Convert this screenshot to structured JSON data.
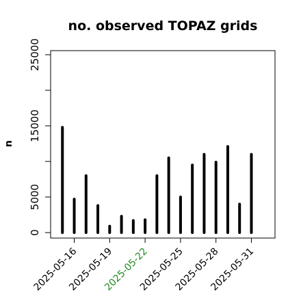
{
  "chart_data": {
    "type": "bar",
    "title": "no. observed TOPAZ grids",
    "xlabel": "",
    "ylabel": "n",
    "ylim": [
      0,
      25000
    ],
    "yticks": [
      0,
      5000,
      15000,
      25000
    ],
    "xlim": [
      "2025-05-14",
      "2025-06-02"
    ],
    "x": [
      "2025-05-15",
      "2025-05-16",
      "2025-05-17",
      "2025-05-18",
      "2025-05-19",
      "2025-05-20",
      "2025-05-21",
      "2025-05-22",
      "2025-05-23",
      "2025-05-24",
      "2025-05-25",
      "2025-05-26",
      "2025-05-27",
      "2025-05-28",
      "2025-05-29",
      "2025-05-30",
      "2025-05-31"
    ],
    "values": [
      14800,
      4700,
      8000,
      3800,
      900,
      2300,
      1700,
      1800,
      8000,
      10500,
      5000,
      9500,
      11000,
      9900,
      12100,
      4000,
      11000
    ],
    "xtick_labels": [
      {
        "date": "2025-05-16",
        "label": "2025-05-16",
        "color": "#000000"
      },
      {
        "date": "2025-05-19",
        "label": "2025-05-19",
        "color": "#000000"
      },
      {
        "date": "2025-05-22",
        "label": "2025-05-22",
        "color": "#228B22"
      },
      {
        "date": "2025-05-25",
        "label": "2025-05-25",
        "color": "#000000"
      },
      {
        "date": "2025-05-28",
        "label": "2025-05-28",
        "color": "#000000"
      },
      {
        "date": "2025-05-31",
        "label": "2025-05-31",
        "color": "#000000"
      }
    ],
    "bar_color": "#000000",
    "grid": false,
    "legend": "none"
  }
}
